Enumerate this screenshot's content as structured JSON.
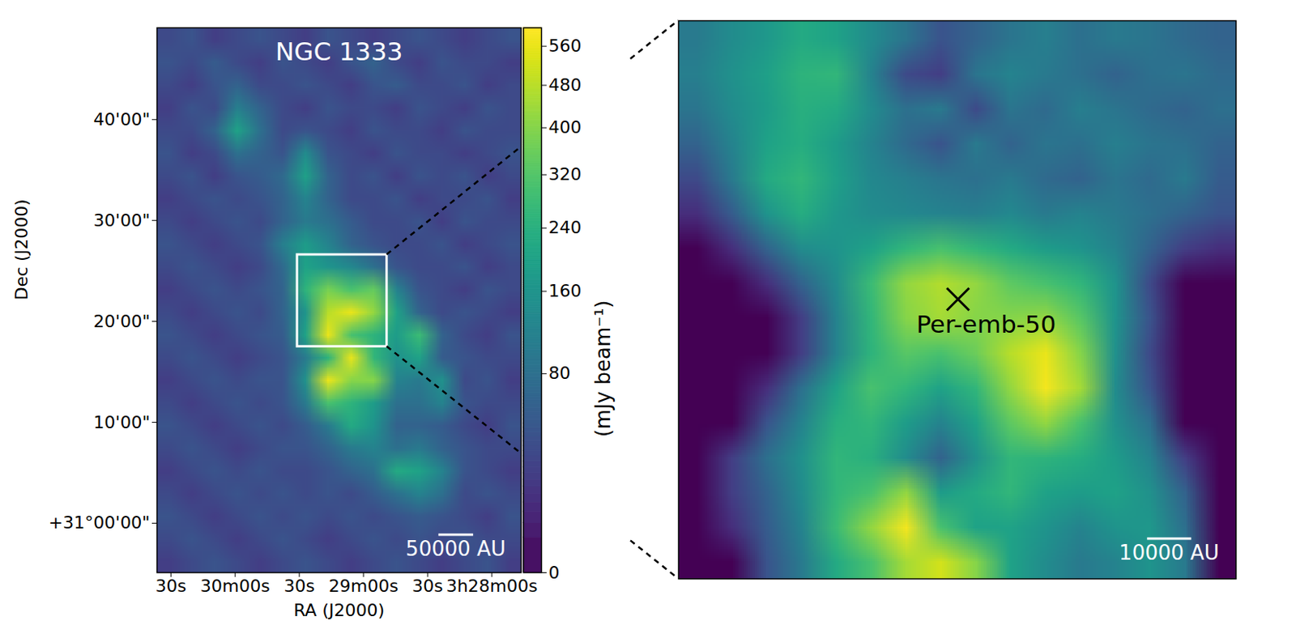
{
  "chart_data": [
    {
      "type": "heatmap",
      "title": "NGC 1333",
      "x_label": "RA (J2000)",
      "y_label": "Dec (J2000)",
      "color": "viridis",
      "xlim": [
        156.5,
        -13.7
      ],
      "ylim": [
        -4.9,
        49.1
      ],
      "xticks": [
        {
          "value": 150,
          "label": "30s"
        },
        {
          "value": 120,
          "label": "30m00s"
        },
        {
          "value": 90,
          "label": "30s"
        },
        {
          "value": 60,
          "label": "29m00s"
        },
        {
          "value": 30,
          "label": "30s"
        },
        {
          "value": 0,
          "label": "3h28m00s"
        }
      ],
      "yticks": [
        {
          "value": 0,
          "label": "+31°00'00\""
        },
        {
          "value": 10,
          "label": "10'00\""
        },
        {
          "value": 20,
          "label": "20'00\""
        },
        {
          "value": 30,
          "label": "30'00\""
        },
        {
          "value": 40,
          "label": "40'00\""
        }
      ],
      "colorbar_label": "(mJy beam⁻¹)",
      "colorbar_lim": [
        0,
        600
      ],
      "colorbar_ticks": [
        0,
        80,
        160,
        240,
        320,
        400,
        480,
        560
      ],
      "scale_bar": {
        "label": "50000 AU",
        "length": 3.44
      },
      "cells": [
        [
          30,
          40,
          20,
          30,
          40,
          30,
          20,
          40,
          30,
          20,
          30,
          40,
          30,
          20,
          30,
          40
        ],
        [
          40,
          30,
          50,
          30,
          20,
          40,
          30,
          20,
          40,
          60,
          30,
          20,
          40,
          30,
          30,
          20
        ],
        [
          30,
          20,
          40,
          60,
          30,
          30,
          40,
          30,
          20,
          40,
          50,
          30,
          30,
          40,
          20,
          30
        ],
        [
          20,
          40,
          30,
          110,
          60,
          30,
          20,
          40,
          30,
          30,
          20,
          40,
          30,
          20,
          40,
          30
        ],
        [
          30,
          30,
          60,
          200,
          80,
          30,
          40,
          30,
          20,
          40,
          30,
          30,
          20,
          40,
          30,
          30
        ],
        [
          40,
          20,
          30,
          80,
          60,
          40,
          140,
          40,
          30,
          20,
          40,
          30,
          30,
          20,
          30,
          40
        ],
        [
          30,
          40,
          20,
          40,
          50,
          70,
          190,
          60,
          30,
          40,
          20,
          40,
          30,
          40,
          20,
          30
        ],
        [
          20,
          30,
          40,
          30,
          40,
          60,
          120,
          60,
          30,
          30,
          40,
          20,
          30,
          30,
          40,
          20
        ],
        [
          30,
          20,
          30,
          40,
          30,
          60,
          100,
          80,
          50,
          30,
          30,
          40,
          20,
          40,
          30,
          30
        ],
        [
          40,
          30,
          20,
          30,
          40,
          110,
          180,
          120,
          60,
          40,
          30,
          30,
          40,
          20,
          30,
          40
        ],
        [
          30,
          40,
          30,
          20,
          30,
          70,
          200,
          160,
          130,
          80,
          40,
          30,
          30,
          40,
          20,
          30
        ],
        [
          20,
          30,
          40,
          30,
          40,
          60,
          250,
          380,
          300,
          350,
          120,
          40,
          30,
          20,
          40,
          30
        ],
        [
          30,
          20,
          30,
          40,
          30,
          60,
          160,
          480,
          560,
          420,
          200,
          60,
          30,
          40,
          30,
          20
        ],
        [
          40,
          30,
          20,
          30,
          40,
          50,
          200,
          560,
          300,
          250,
          180,
          280,
          60,
          30,
          20,
          40
        ],
        [
          30,
          40,
          30,
          20,
          30,
          40,
          100,
          250,
          560,
          260,
          150,
          200,
          50,
          40,
          30,
          30
        ],
        [
          20,
          30,
          40,
          30,
          40,
          40,
          150,
          560,
          400,
          400,
          120,
          100,
          150,
          30,
          40,
          20
        ],
        [
          30,
          20,
          30,
          40,
          30,
          40,
          100,
          300,
          250,
          180,
          80,
          80,
          120,
          40,
          30,
          30
        ],
        [
          40,
          30,
          20,
          30,
          40,
          30,
          50,
          100,
          220,
          160,
          60,
          60,
          50,
          30,
          20,
          40
        ],
        [
          30,
          40,
          30,
          20,
          30,
          40,
          40,
          60,
          100,
          120,
          80,
          100,
          60,
          40,
          30,
          30
        ],
        [
          20,
          30,
          40,
          30,
          40,
          30,
          30,
          40,
          60,
          80,
          220,
          200,
          120,
          40,
          30,
          20
        ],
        [
          30,
          20,
          30,
          40,
          30,
          40,
          30,
          40,
          30,
          50,
          80,
          120,
          80,
          30,
          40,
          30
        ],
        [
          40,
          30,
          20,
          30,
          40,
          30,
          40,
          30,
          40,
          30,
          40,
          50,
          40,
          30,
          20,
          40
        ],
        [
          30,
          40,
          30,
          20,
          30,
          40,
          30,
          20,
          30,
          40,
          30,
          40,
          30,
          40,
          30,
          30
        ],
        [
          20,
          30,
          40,
          30,
          20,
          30,
          40,
          30,
          20,
          30,
          40,
          30,
          20,
          30,
          40,
          20
        ]
      ]
    },
    {
      "type": "heatmap",
      "color": "viridis",
      "tick_labels": false,
      "xlim": [
        90.9,
        49.0
      ],
      "ylim": [
        17.5,
        26.6
      ],
      "scale_bar": {
        "label": "10000 AU",
        "length": 0.72
      },
      "annotations": [
        {
          "text": "Per-emb-50",
          "x": 69.9,
          "y": 22.06,
          "marker": "x"
        }
      ],
      "cells": [
        [
          100,
          140,
          170,
          220,
          200,
          140,
          90,
          40,
          60,
          90,
          110,
          80,
          100,
          90,
          70,
          60
        ],
        [
          110,
          150,
          190,
          250,
          260,
          120,
          30,
          20,
          90,
          120,
          100,
          80,
          60,
          80,
          90,
          70
        ],
        [
          90,
          140,
          180,
          240,
          220,
          140,
          80,
          100,
          30,
          90,
          70,
          110,
          90,
          70,
          60,
          80
        ],
        [
          60,
          120,
          200,
          230,
          180,
          120,
          70,
          40,
          100,
          60,
          90,
          80,
          110,
          90,
          80,
          60
        ],
        [
          30,
          100,
          220,
          260,
          190,
          130,
          110,
          90,
          80,
          100,
          70,
          60,
          90,
          70,
          100,
          50
        ],
        [
          10,
          50,
          160,
          230,
          170,
          140,
          130,
          120,
          110,
          130,
          100,
          120,
          100,
          80,
          60,
          40
        ],
        [
          0,
          10,
          60,
          140,
          160,
          200,
          260,
          300,
          260,
          220,
          180,
          160,
          120,
          60,
          20,
          10
        ],
        [
          0,
          0,
          10,
          60,
          140,
          280,
          420,
          470,
          420,
          340,
          300,
          260,
          160,
          30,
          0,
          0
        ],
        [
          0,
          0,
          0,
          20,
          120,
          260,
          400,
          450,
          400,
          400,
          420,
          330,
          160,
          40,
          0,
          0
        ],
        [
          0,
          0,
          0,
          20,
          120,
          250,
          330,
          300,
          360,
          480,
          560,
          400,
          150,
          30,
          0,
          0
        ],
        [
          0,
          0,
          10,
          80,
          200,
          300,
          260,
          200,
          260,
          420,
          580,
          450,
          140,
          40,
          0,
          0
        ],
        [
          0,
          0,
          40,
          120,
          240,
          260,
          180,
          120,
          200,
          340,
          420,
          300,
          150,
          80,
          0,
          0
        ],
        [
          0,
          20,
          80,
          150,
          260,
          240,
          140,
          60,
          150,
          260,
          250,
          230,
          180,
          120,
          20,
          0
        ],
        [
          0,
          20,
          60,
          140,
          260,
          300,
          420,
          180,
          220,
          260,
          200,
          180,
          200,
          150,
          60,
          0
        ],
        [
          0,
          10,
          50,
          120,
          280,
          420,
          580,
          300,
          200,
          200,
          160,
          120,
          160,
          170,
          80,
          0
        ],
        [
          0,
          0,
          40,
          100,
          220,
          300,
          450,
          520,
          400,
          200,
          140,
          100,
          120,
          160,
          100,
          0
        ]
      ]
    }
  ]
}
